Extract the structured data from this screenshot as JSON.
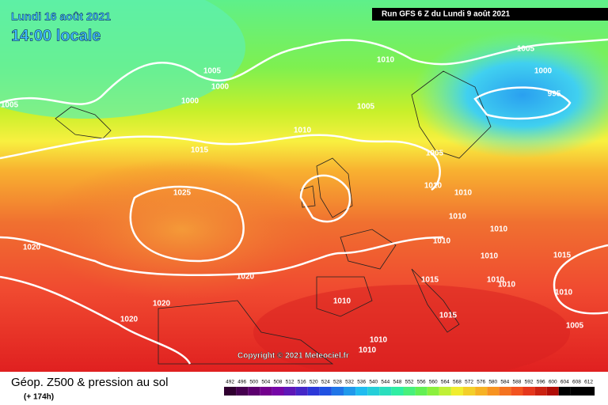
{
  "header": {
    "date": "Lundi 16 août 2021",
    "time": "14:00 locale",
    "run": "Run GFS 6 Z du Lundi 9 août 2021"
  },
  "copyright": "Copyright © 2021 Meteociel.fr",
  "footer": {
    "title": "Géop. Z500 & pression au sol",
    "lead": "(+ 174h)"
  },
  "map": {
    "isobar_labels": [
      1005,
      1005,
      1000,
      1000,
      1010,
      1005,
      1000,
      995,
      1005,
      1010,
      1015,
      1005,
      1010,
      1010,
      1025,
      1010,
      1010,
      1010,
      1020,
      1015,
      1010,
      1020,
      1015,
      1010,
      1010,
      1010,
      1020,
      1010,
      1015,
      1020,
      1005,
      1010,
      1010
    ]
  },
  "legend": {
    "labels": [
      492,
      496,
      500,
      504,
      508,
      512,
      516,
      520,
      524,
      528,
      532,
      536,
      540,
      544,
      548,
      552,
      556,
      560,
      564,
      568,
      572,
      576,
      580,
      584,
      588,
      592,
      596,
      600,
      604,
      608,
      612
    ]
  }
}
